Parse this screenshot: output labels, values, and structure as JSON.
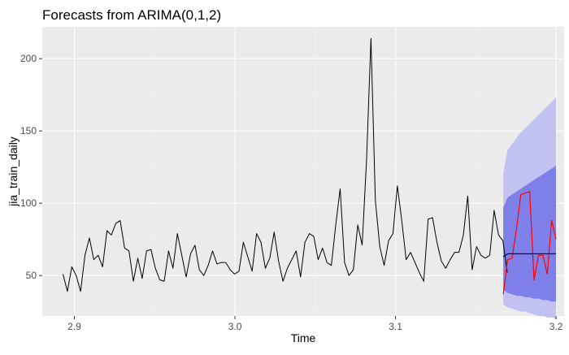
{
  "chart_data": {
    "type": "line",
    "title": "Forecasts from ARIMA(0,1,2)",
    "xlabel": "Time",
    "ylabel": "jia_train_daily",
    "xlim": [
      2.88,
      3.205
    ],
    "ylim": [
      22,
      222
    ],
    "x_ticks": [
      2.9,
      3.0,
      3.1,
      3.2
    ],
    "x_tick_labels": [
      "2.9",
      "3.0",
      "3.1",
      "3.2"
    ],
    "y_ticks": [
      50,
      100,
      150,
      200
    ],
    "y_tick_labels": [
      "50",
      "100",
      "150",
      "200"
    ],
    "grid": true,
    "colors": {
      "panel": "#ebebeb",
      "grid_major": "#ffffff",
      "grid_minor": "#f4f4f4",
      "observed": "#000000",
      "forecast": "#00004d",
      "actual_overlay": "#ff0000",
      "band_95": "#c2c2f2",
      "band_80": "#7f7fe9"
    },
    "series": [
      {
        "role": "observed",
        "x_start": 2.8929,
        "x_step": 0.00274,
        "values": [
          51,
          39,
          56,
          50,
          39,
          64,
          76,
          61,
          64,
          56,
          81,
          78,
          86,
          88,
          69,
          67,
          46,
          62,
          48,
          67,
          68,
          55,
          47,
          46,
          67,
          55,
          79,
          64,
          49,
          65,
          71,
          54,
          50,
          57,
          67,
          58,
          59,
          59,
          54,
          51,
          53,
          73,
          63,
          53,
          79,
          73,
          55,
          62,
          80,
          60,
          46,
          55,
          61,
          67,
          49,
          73,
          79,
          77,
          61,
          69,
          59,
          57,
          85,
          110,
          59,
          50,
          54,
          85,
          71,
          130,
          214,
          102,
          70,
          57,
          74,
          79,
          112,
          88,
          61,
          66,
          59,
          52,
          46,
          89,
          90,
          73,
          60,
          55,
          61,
          66,
          66,
          78,
          105,
          54,
          70,
          64,
          62,
          64,
          95,
          78,
          74,
          52
        ]
      },
      {
        "role": "forecast",
        "x_start": 3.1671,
        "x_step": 0.00274,
        "values": [
          63,
          65,
          65,
          65,
          65,
          65,
          65,
          65,
          65,
          65,
          65,
          65,
          65
        ]
      },
      {
        "role": "actual",
        "x_start": 3.1671,
        "x_step": 0.00274,
        "values": [
          37,
          61,
          62,
          82,
          106,
          107,
          108,
          47,
          64,
          64,
          51,
          88,
          75
        ]
      }
    ],
    "bands": {
      "x_start": 3.1671,
      "x_step": 0.00274,
      "lower_95": [
        30,
        28,
        27,
        26,
        25,
        25,
        24,
        23,
        22,
        22,
        21,
        21,
        20
      ],
      "upper_95": [
        121,
        137,
        141,
        145,
        149,
        152,
        155,
        158,
        161,
        164,
        167,
        170,
        173
      ],
      "lower_80": [
        40,
        38,
        37,
        36,
        36,
        35,
        35,
        34,
        34,
        33,
        33,
        32,
        32
      ],
      "upper_80": [
        97,
        104,
        106,
        108,
        110,
        112,
        114,
        116,
        118,
        120,
        122,
        124,
        126
      ]
    }
  }
}
